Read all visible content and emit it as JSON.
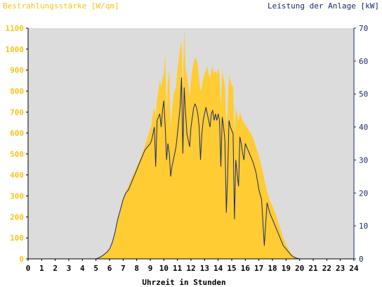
{
  "chart_data": {
    "type": "area",
    "title_left": "Bestrahlungsstärke [W/qm]",
    "title_right": "Leistung der Anlage [kW]",
    "xlabel": "Uhrzeit in Stunden",
    "xlim": [
      0,
      24
    ],
    "x_ticks": [
      "0",
      "1",
      "2",
      "3",
      "4",
      "5",
      "6",
      "7",
      "8",
      "9",
      "10",
      "11",
      "12",
      "13",
      "14",
      "15",
      "16",
      "17",
      "18",
      "19",
      "20",
      "21",
      "22",
      "23",
      "24"
    ],
    "y_left": {
      "lim": [
        0,
        1100
      ],
      "ticks": [
        "0",
        "100",
        "200",
        "300",
        "400",
        "500",
        "600",
        "700",
        "800",
        "900",
        "1000",
        "1100"
      ],
      "color": "#f5c518"
    },
    "y_right": {
      "lim": [
        0,
        70
      ],
      "ticks": [
        "0",
        "10",
        "20",
        "30",
        "40",
        "50",
        "60",
        "70"
      ],
      "color": "#1a2a6c"
    },
    "background_color": "#dcdcdc",
    "series": [
      {
        "key": "irradiance",
        "axis": "left",
        "style": "area",
        "color": "#ffcc33",
        "x": [
          0,
          5,
          5.2,
          5.5,
          5.8,
          6.0,
          6.2,
          6.4,
          6.6,
          6.8,
          7.0,
          7.2,
          7.4,
          7.6,
          7.8,
          8.0,
          8.2,
          8.4,
          8.6,
          8.8,
          9.0,
          9.1,
          9.2,
          9.3,
          9.4,
          9.5,
          9.6,
          9.7,
          9.8,
          9.9,
          10.0,
          10.1,
          10.2,
          10.3,
          10.4,
          10.5,
          10.6,
          10.7,
          10.8,
          10.9,
          11.0,
          11.1,
          11.2,
          11.3,
          11.4,
          11.5,
          11.6,
          11.7,
          11.8,
          11.9,
          12.0,
          12.1,
          12.2,
          12.3,
          12.4,
          12.5,
          12.6,
          12.7,
          12.8,
          12.9,
          13.0,
          13.1,
          13.2,
          13.3,
          13.4,
          13.5,
          13.6,
          13.7,
          13.8,
          13.9,
          14.0,
          14.1,
          14.2,
          14.3,
          14.4,
          14.5,
          14.6,
          14.7,
          14.8,
          14.9,
          15.0,
          15.1,
          15.2,
          15.3,
          15.4,
          15.5,
          15.6,
          15.7,
          15.8,
          15.9,
          16.0,
          16.2,
          16.4,
          16.6,
          16.8,
          17.0,
          17.2,
          17.4,
          17.6,
          17.8,
          18.0,
          18.2,
          18.4,
          18.6,
          18.8,
          19.0,
          19.2,
          19.4,
          19.6,
          19.8,
          20.0,
          20.2,
          20.4,
          20.6,
          21,
          24
        ],
        "values": [
          0,
          0,
          5,
          15,
          30,
          50,
          80,
          120,
          180,
          240,
          290,
          320,
          350,
          380,
          410,
          440,
          470,
          500,
          540,
          580,
          620,
          640,
          700,
          720,
          680,
          760,
          800,
          850,
          820,
          860,
          880,
          980,
          700,
          850,
          900,
          620,
          700,
          780,
          800,
          820,
          900,
          950,
          1000,
          1040,
          800,
          1100,
          900,
          880,
          820,
          780,
          850,
          900,
          940,
          960,
          950,
          920,
          860,
          800,
          820,
          860,
          880,
          900,
          920,
          880,
          860,
          900,
          920,
          880,
          900,
          880,
          910,
          880,
          720,
          900,
          860,
          820,
          640,
          700,
          880,
          850,
          830,
          820,
          600,
          720,
          690,
          660,
          700,
          680,
          660,
          650,
          640,
          620,
          600,
          570,
          530,
          490,
          440,
          380,
          320,
          280,
          250,
          220,
          180,
          140,
          100,
          70,
          45,
          25,
          12,
          5,
          2,
          0,
          0,
          0,
          0,
          0
        ]
      },
      {
        "key": "power",
        "axis": "right",
        "style": "line",
        "color": "#1a2a6c",
        "x": [
          0,
          5,
          5.2,
          5.5,
          5.8,
          6.0,
          6.2,
          6.4,
          6.6,
          6.8,
          7.0,
          7.2,
          7.4,
          7.6,
          7.8,
          8.0,
          8.2,
          8.4,
          8.6,
          8.8,
          9.0,
          9.1,
          9.2,
          9.3,
          9.4,
          9.5,
          9.6,
          9.7,
          9.8,
          9.9,
          10.0,
          10.1,
          10.2,
          10.3,
          10.4,
          10.5,
          10.6,
          10.7,
          10.8,
          10.9,
          11.0,
          11.1,
          11.2,
          11.3,
          11.4,
          11.5,
          11.6,
          11.7,
          11.8,
          11.9,
          12.0,
          12.1,
          12.2,
          12.3,
          12.4,
          12.5,
          12.6,
          12.7,
          12.8,
          12.9,
          13.0,
          13.1,
          13.2,
          13.3,
          13.4,
          13.5,
          13.6,
          13.7,
          13.8,
          13.9,
          14.0,
          14.1,
          14.2,
          14.3,
          14.4,
          14.5,
          14.6,
          14.7,
          14.8,
          14.9,
          15.0,
          15.1,
          15.2,
          15.3,
          15.4,
          15.5,
          15.6,
          15.7,
          15.8,
          15.9,
          16.0,
          16.2,
          16.4,
          16.6,
          16.8,
          17.0,
          17.2,
          17.4,
          17.6,
          17.8,
          18.0,
          18.2,
          18.4,
          18.6,
          18.8,
          19.0,
          19.2,
          19.4,
          19.6,
          19.8,
          20.0,
          20.2,
          20.4,
          20.6,
          21,
          24
        ],
        "values": [
          0,
          0,
          0.3,
          1,
          2,
          3,
          5,
          8,
          12,
          15,
          18,
          20,
          21,
          23,
          25,
          27,
          29,
          31,
          33,
          34,
          35,
          36,
          38,
          40,
          28,
          42,
          43,
          44,
          40,
          45,
          48,
          40,
          30,
          35,
          32,
          25,
          28,
          30,
          32,
          34,
          38,
          42,
          46,
          55,
          32,
          52,
          44,
          38,
          36,
          34,
          40,
          43,
          46,
          47,
          46,
          44,
          40,
          30,
          38,
          42,
          44,
          46,
          44,
          42,
          40,
          44,
          45,
          42,
          44,
          42,
          44,
          42,
          28,
          43,
          40,
          36,
          14,
          25,
          42,
          40,
          39,
          38,
          12,
          30,
          26,
          22,
          37,
          35,
          32,
          30,
          35,
          33,
          31,
          29,
          26,
          21,
          18,
          4,
          17,
          14,
          12,
          10,
          8,
          6,
          4,
          3,
          2,
          1,
          0.5,
          0.2,
          0,
          0,
          0,
          0,
          0,
          0
        ]
      }
    ]
  }
}
